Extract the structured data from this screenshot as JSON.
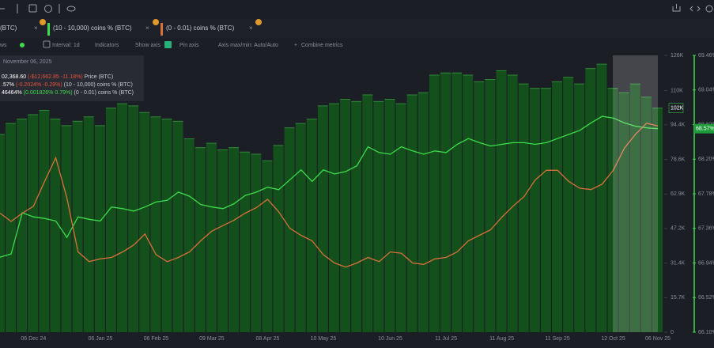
{
  "tabs": [
    "(BTC)",
    "(10 - 10,000) coins % (BTC)",
    "(0 - 0.01) coins % (BTC)"
  ],
  "settings_bar": {
    "rows": "ws",
    "interval": "Interval: 1d",
    "indicators": "Indicators",
    "show_axis": "Show axis",
    "pin_axis": "Pin axis",
    "axis_minmax": "Axis max/min: Auto/Auto",
    "combine": "Combine metrics"
  },
  "tooltip": {
    "date": "November 06, 2025",
    "rows": [
      {
        "value": "02,368.60",
        "change": "(-$12,662.85",
        "pct": "-11.18%)",
        "name": "Price (BTC)",
        "color": "#e5533d"
      },
      {
        "value": ".57%",
        "change": "(-0.2024%",
        "pct": "-0.29%)",
        "name": "(10 - 10,000) coins % (BTC)",
        "color": "#e5533d"
      },
      {
        "value": "46464%",
        "change": "(0.001826%",
        "pct": "0.79%)",
        "name": "(0 - 0.01) coins % (BTC)",
        "color": "#3ddc4c"
      }
    ]
  },
  "chart_data": {
    "type": "bar",
    "categories": [
      null,
      null,
      null,
      "06 Dec 24",
      null,
      null,
      null,
      null,
      null,
      "06 Jan 25",
      null,
      null,
      null,
      null,
      "06 Feb 25",
      null,
      null,
      null,
      null,
      "09 Mar 25",
      null,
      null,
      null,
      null,
      "08 Apr 25",
      null,
      null,
      null,
      null,
      "10 May 25",
      null,
      null,
      null,
      null,
      null,
      "10 Jun 25",
      null,
      null,
      null,
      null,
      "11 Jul 25",
      null,
      null,
      null,
      null,
      "11 Aug 25",
      null,
      null,
      null,
      null,
      "11 Sep 25",
      null,
      null,
      null,
      null,
      "12 Oct 25",
      null,
      null,
      null,
      "06 Nov 25"
    ],
    "series": [
      {
        "name": "(BTC)",
        "type": "bar",
        "color": "#14501c",
        "last_label": "102K",
        "values": [
          90,
          95,
          97,
          99,
          101,
          97,
          94,
          96,
          98,
          94,
          102,
          104,
          103,
          100,
          98,
          97,
          96,
          88,
          84,
          86,
          83,
          84,
          82,
          81,
          78,
          85,
          93,
          95,
          97,
          103,
          104,
          106,
          105,
          108,
          105,
          106,
          104,
          108,
          109,
          117,
          118,
          118,
          117,
          114,
          115,
          119,
          117,
          113,
          111,
          111,
          114,
          116,
          113,
          120,
          122,
          111,
          109,
          113,
          107,
          102
        ]
      },
      {
        "name": "(10 - 10,000) coins % (BTC)",
        "type": "line",
        "axis": "y2",
        "color": "#3ddc4c",
        "last_label": "68.57%",
        "values": [
          67.01,
          67.05,
          67.55,
          67.5,
          67.48,
          67.45,
          67.25,
          67.5,
          67.47,
          67.45,
          67.62,
          67.6,
          67.57,
          67.62,
          67.68,
          67.7,
          67.8,
          67.75,
          67.65,
          67.62,
          67.6,
          67.66,
          67.76,
          67.8,
          67.86,
          67.83,
          67.95,
          68.07,
          67.93,
          68.07,
          68.02,
          68.05,
          68.12,
          68.35,
          68.28,
          68.26,
          68.35,
          68.3,
          68.26,
          68.3,
          68.28,
          68.38,
          68.45,
          68.4,
          68.36,
          68.38,
          68.4,
          68.4,
          68.38,
          68.4,
          68.45,
          68.5,
          68.55,
          68.64,
          68.72,
          68.7,
          68.64,
          68.6,
          68.58,
          68.57
        ]
      },
      {
        "name": "(0 - 0.01) coins % (BTC)",
        "type": "line",
        "axis": "y3",
        "color": "#d9703a",
        "values": [
          0.2286,
          0.228,
          0.2286,
          0.2291,
          0.2309,
          0.2326,
          0.2297,
          0.2258,
          0.2251,
          0.2253,
          0.2254,
          0.2258,
          0.2263,
          0.2271,
          0.2256,
          0.2251,
          0.2254,
          0.2258,
          0.2266,
          0.2273,
          0.2277,
          0.2281,
          0.2286,
          0.229,
          0.2296,
          0.2287,
          0.2275,
          0.227,
          0.2266,
          0.2256,
          0.225,
          0.2247,
          0.225,
          0.2254,
          0.2251,
          0.2258,
          0.2257,
          0.225,
          0.2249,
          0.2253,
          0.2254,
          0.2258,
          0.2266,
          0.227,
          0.2274,
          0.2283,
          0.2291,
          0.2298,
          0.231,
          0.2317,
          0.2317,
          0.2309,
          0.2304,
          0.2303,
          0.2307,
          0.2317,
          0.2333,
          0.2343,
          0.2351,
          0.2349
        ]
      }
    ],
    "ylim": [
      0,
      126
    ],
    "yticks": [
      {
        "value": 0,
        "label": "0"
      },
      {
        "value": 15.7,
        "label": "15.7K"
      },
      {
        "value": 31.4,
        "label": "31.4K"
      },
      {
        "value": 47.2,
        "label": "47.2K"
      },
      {
        "value": 62.9,
        "label": "62.9K"
      },
      {
        "value": 78.6,
        "label": "78.6K"
      },
      {
        "value": 94.4,
        "label": "94.4K"
      },
      {
        "value": 110,
        "label": "110K"
      },
      {
        "value": 126,
        "label": "126K"
      }
    ],
    "y2lim": [
      66.1,
      69.46
    ],
    "y2ticks": [
      {
        "value": 66.1,
        "label": "66.10%"
      },
      {
        "value": 66.52,
        "label": "66.52%"
      },
      {
        "value": 66.94,
        "label": "66.94%"
      },
      {
        "value": 67.36,
        "label": "67.36%"
      },
      {
        "value": 67.78,
        "label": "67.78%"
      },
      {
        "value": 68.2,
        "label": "68.20%"
      },
      {
        "value": 68.62,
        "label": "68.62%"
      },
      {
        "value": 69.04,
        "label": "69.04%"
      },
      {
        "value": 69.46,
        "label": "69.46%"
      }
    ],
    "y3lim": [
      0.22,
      0.24
    ]
  }
}
